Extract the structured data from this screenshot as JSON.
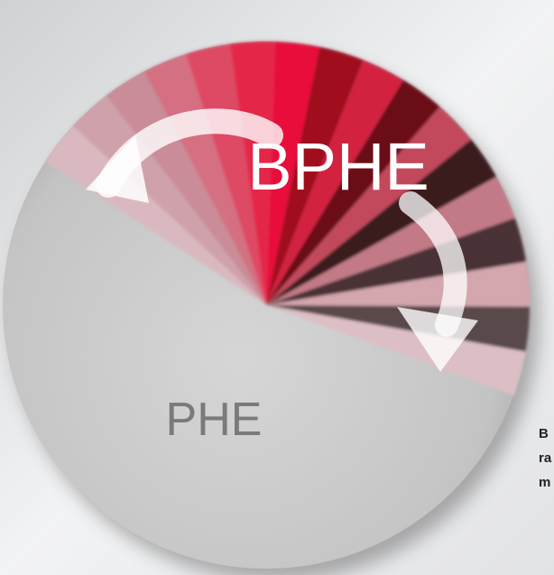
{
  "pie_labels": {
    "upper": "BPHE",
    "lower": "PHE"
  },
  "side_text": [
    "B",
    "ra",
    "m"
  ]
}
